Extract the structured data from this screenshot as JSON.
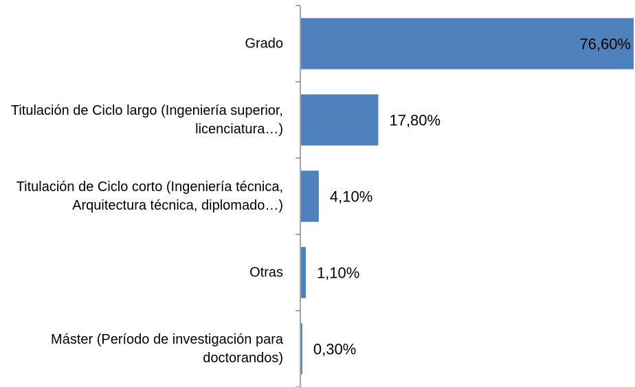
{
  "chart_data": {
    "type": "hbar",
    "categories": [
      "Grado",
      "Titulación de Ciclo largo (Ingeniería superior, licenciatura…)",
      "Titulación de Ciclo corto (Ingeniería técnica, Arquitectura técnica, diplomado…)",
      "Otras",
      "Máster (Período de investigación para doctorandos)"
    ],
    "values": [
      76.6,
      17.8,
      4.1,
      1.1,
      0.3
    ],
    "value_labels": [
      "76,60%",
      "17,80%",
      "4,10%",
      "1,10%",
      "0,30%"
    ],
    "color": "#4f81bd"
  }
}
